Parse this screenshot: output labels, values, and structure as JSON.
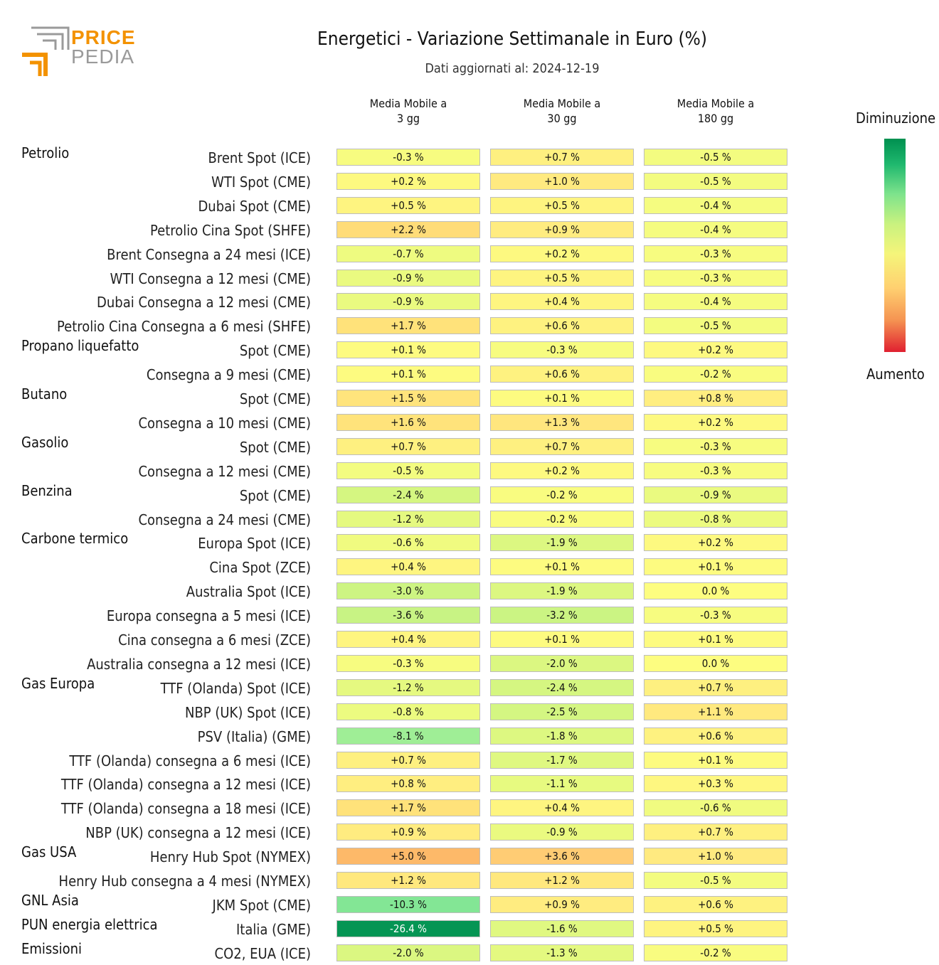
{
  "header": {
    "logo_word1": "PRICE",
    "logo_word2": "PEDIA",
    "title": "Energetici - Variazione Settimanale in Euro (%)",
    "subtitle": "Dati aggiornati al: 2024-12-19"
  },
  "legend": {
    "top_label": "Diminuzione",
    "bottom_label": "Aumento"
  },
  "colors": {
    "logo_orange": "#f39200",
    "logo_gray": "#9a9a9a",
    "strong_decrease": "#009050",
    "neutral": "#fdfd80",
    "increase": "#ffcc70",
    "strong_increase": "#e02030"
  },
  "chart_data": {
    "type": "table",
    "title": "Energetici - Variazione Settimanale in Euro (%)",
    "subtitle": "Dati aggiornati al: 2024-12-19",
    "unit": "%",
    "columns": [
      "Media Mobile a 3 gg",
      "Media Mobile a 30 gg",
      "Media Mobile a 180 gg"
    ],
    "column_lines": [
      [
        "Media Mobile a",
        "3 gg"
      ],
      [
        "Media Mobile a",
        "30 gg"
      ],
      [
        "Media Mobile a",
        "180 gg"
      ]
    ],
    "rows": [
      {
        "group": "Petrolio",
        "label": "Brent Spot (ICE)",
        "values": [
          -0.3,
          0.7,
          -0.5
        ]
      },
      {
        "group": "",
        "label": "WTI Spot (CME)",
        "values": [
          0.2,
          1.0,
          -0.5
        ]
      },
      {
        "group": "",
        "label": "Dubai Spot (CME)",
        "values": [
          0.5,
          0.5,
          -0.4
        ]
      },
      {
        "group": "",
        "label": "Petrolio Cina Spot (SHFE)",
        "values": [
          2.2,
          0.9,
          -0.4
        ]
      },
      {
        "group": "",
        "label": "Brent Consegna a 24 mesi (ICE)",
        "values": [
          -0.7,
          0.2,
          -0.3
        ]
      },
      {
        "group": "",
        "label": "WTI Consegna a 12 mesi (CME)",
        "values": [
          -0.9,
          0.5,
          -0.3
        ]
      },
      {
        "group": "",
        "label": "Dubai Consegna a 12 mesi (CME)",
        "values": [
          -0.9,
          0.4,
          -0.4
        ]
      },
      {
        "group": "",
        "label": "Petrolio Cina Consegna a 6 mesi (SHFE)",
        "values": [
          1.7,
          0.6,
          -0.5
        ]
      },
      {
        "group": "Propano liquefatto",
        "label": "Spot (CME)",
        "values": [
          0.1,
          -0.3,
          0.2
        ]
      },
      {
        "group": "",
        "label": "Consegna a 9 mesi (CME)",
        "values": [
          0.1,
          0.6,
          -0.2
        ]
      },
      {
        "group": "Butano",
        "label": "Spot (CME)",
        "values": [
          1.5,
          0.1,
          0.8
        ]
      },
      {
        "group": "",
        "label": "Consegna a 10 mesi (CME)",
        "values": [
          1.6,
          1.3,
          0.2
        ]
      },
      {
        "group": "Gasolio",
        "label": "Spot (CME)",
        "values": [
          0.7,
          0.7,
          -0.3
        ]
      },
      {
        "group": "",
        "label": "Consegna a 12 mesi (CME)",
        "values": [
          -0.5,
          0.2,
          -0.3
        ]
      },
      {
        "group": "Benzina",
        "label": "Spot (CME)",
        "values": [
          -2.4,
          -0.2,
          -0.9
        ]
      },
      {
        "group": "",
        "label": "Consegna a 24 mesi (CME)",
        "values": [
          -1.2,
          -0.2,
          -0.8
        ]
      },
      {
        "group": "Carbone termico",
        "label": "Europa Spot (ICE)",
        "values": [
          -0.6,
          -1.9,
          0.2
        ]
      },
      {
        "group": "",
        "label": "Cina Spot (ZCE)",
        "values": [
          0.4,
          0.1,
          0.1
        ]
      },
      {
        "group": "",
        "label": "Australia Spot (ICE)",
        "values": [
          -3.0,
          -1.9,
          0.0
        ]
      },
      {
        "group": "",
        "label": "Europa consegna a 5 mesi (ICE)",
        "values": [
          -3.6,
          -3.2,
          -0.3
        ]
      },
      {
        "group": "",
        "label": "Cina consegna a 6 mesi (ZCE)",
        "values": [
          0.4,
          0.1,
          0.1
        ]
      },
      {
        "group": "",
        "label": "Australia consegna a 12 mesi (ICE)",
        "values": [
          -0.3,
          -2.0,
          0.0
        ]
      },
      {
        "group": "Gas Europa",
        "label": "TTF (Olanda) Spot (ICE)",
        "values": [
          -1.2,
          -2.4,
          0.7
        ]
      },
      {
        "group": "",
        "label": "NBP (UK) Spot (ICE)",
        "values": [
          -0.8,
          -2.5,
          1.1
        ]
      },
      {
        "group": "",
        "label": "PSV (Italia) (GME)",
        "values": [
          -8.1,
          -1.8,
          0.6
        ]
      },
      {
        "group": "",
        "label": "TTF (Olanda) consegna a 6 mesi (ICE)",
        "values": [
          0.7,
          -1.7,
          0.1
        ]
      },
      {
        "group": "",
        "label": "TTF (Olanda) consegna a 12 mesi (ICE)",
        "values": [
          0.8,
          -1.1,
          0.3
        ]
      },
      {
        "group": "",
        "label": "TTF (Olanda) consegna a 18 mesi (ICE)",
        "values": [
          1.7,
          0.4,
          -0.6
        ]
      },
      {
        "group": "",
        "label": "NBP (UK) consegna a 12 mesi (ICE)",
        "values": [
          0.9,
          -0.9,
          0.7
        ]
      },
      {
        "group": "Gas USA",
        "label": "Henry Hub Spot (NYMEX)",
        "values": [
          5.0,
          3.6,
          1.0
        ]
      },
      {
        "group": "",
        "label": "Henry Hub consegna a 4 mesi (NYMEX)",
        "values": [
          1.2,
          1.2,
          -0.5
        ]
      },
      {
        "group": "GNL Asia",
        "label": "JKM Spot (CME)",
        "values": [
          -10.3,
          0.9,
          0.6
        ]
      },
      {
        "group": "PUN energia elettrica",
        "label": "Italia (GME)",
        "values": [
          -26.4,
          -1.6,
          0.5
        ]
      },
      {
        "group": "Emissioni",
        "label": "CO2, EUA (ICE)",
        "values": [
          -2.0,
          -1.3,
          -0.2
        ]
      }
    ]
  }
}
